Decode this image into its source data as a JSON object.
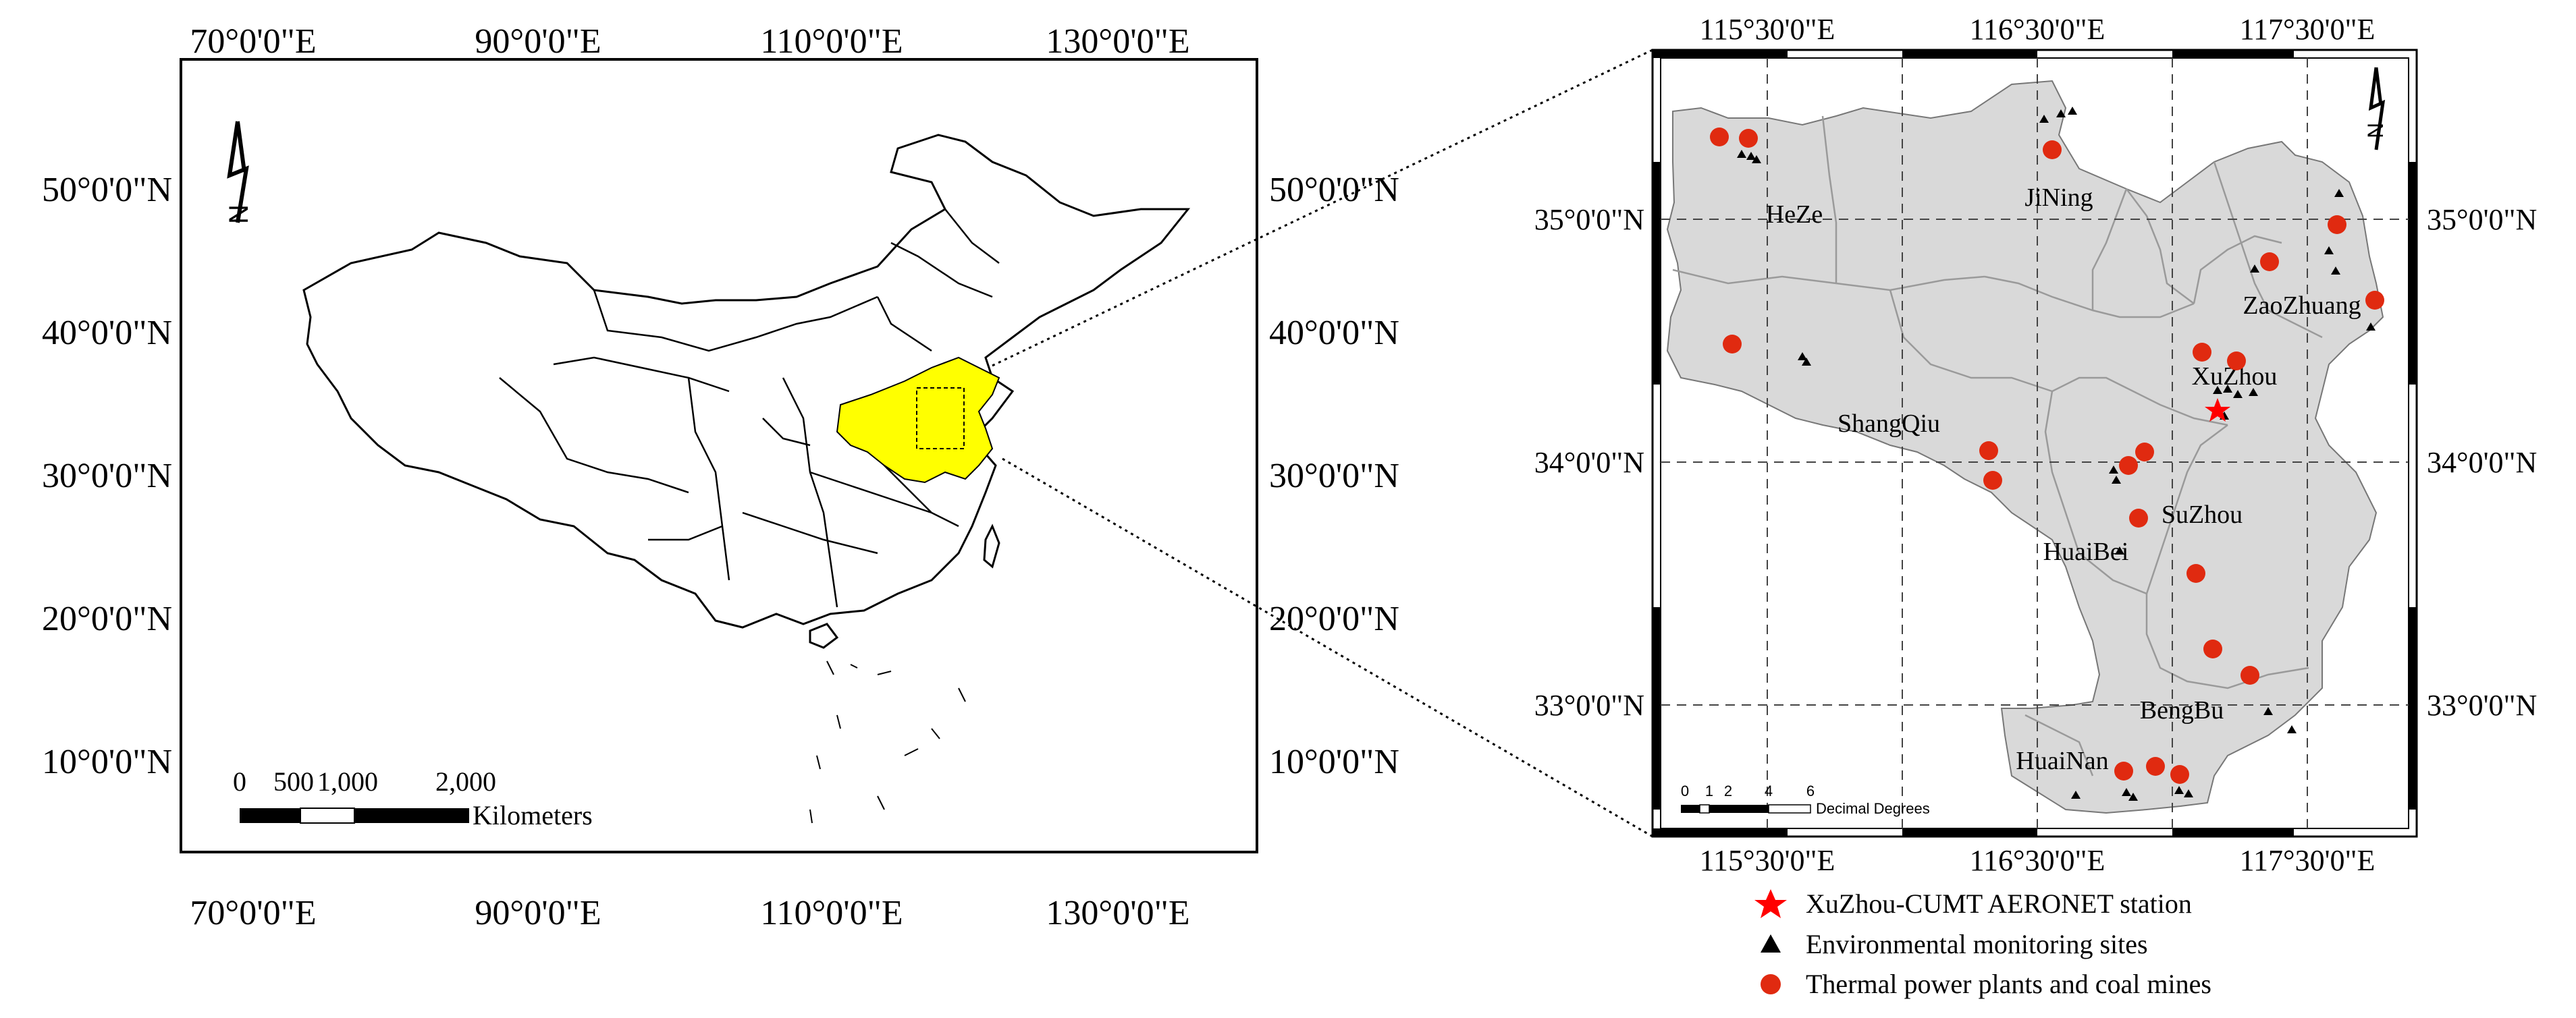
{
  "left_map": {
    "top_lon_labels": [
      "70°0'0\"E",
      "90°0'0\"E",
      "110°0'0\"E",
      "130°0'0\"E"
    ],
    "bottom_lon_labels": [
      "70°0'0\"E",
      "90°0'0\"E",
      "110°0'0\"E",
      "130°0'0\"E"
    ],
    "left_lat_labels": [
      "50°0'0\"N",
      "40°0'0\"N",
      "30°0'0\"N",
      "20°0'0\"N",
      "10°0'0\"N"
    ],
    "right_lat_labels": [
      "50°0'0\"N",
      "40°0'0\"N",
      "30°0'0\"N",
      "20°0'0\"N",
      "10°0'0\"N"
    ],
    "north_arrow": "N",
    "scale_bar": {
      "ticks": [
        "0",
        "500",
        "1,000",
        "2,000"
      ],
      "unit": "Kilometers"
    },
    "highlight_color": "#ffff00"
  },
  "right_map": {
    "top_lon_labels": [
      "115°30'0\"E",
      "116°30'0\"E",
      "117°30'0\"E"
    ],
    "bottom_lon_labels": [
      "115°30'0\"E",
      "116°30'0\"E",
      "117°30'0\"E"
    ],
    "left_lat_labels": [
      "35°0'0\"N",
      "34°0'0\"N",
      "33°0'0\"N"
    ],
    "right_lat_labels": [
      "35°0'0\"N",
      "34°0'0\"N",
      "33°0'0\"N"
    ],
    "north_arrow": "N",
    "cities": [
      "HeZe",
      "JiNing",
      "ZaoZhuang",
      "XuZhou",
      "ShangQiu",
      "SuZhou",
      "HuaiBei",
      "BengBu",
      "HuaiNan"
    ],
    "scale_bar": {
      "ticks": [
        "0",
        "1",
        "2",
        "4",
        "6"
      ],
      "unit": "Decimal Degrees"
    },
    "region_fill": "#d9d9d9"
  },
  "legend": {
    "items": [
      {
        "label": "XuZhou-CUMT AERONET station",
        "symbol": "star-icon",
        "color": "#ff0000"
      },
      {
        "label": "Environmental monitoring sites",
        "symbol": "triangle-icon",
        "color": "#000000"
      },
      {
        "label": "Thermal power plants and coal mines",
        "symbol": "circle-icon",
        "color": "#e02a10"
      }
    ]
  }
}
